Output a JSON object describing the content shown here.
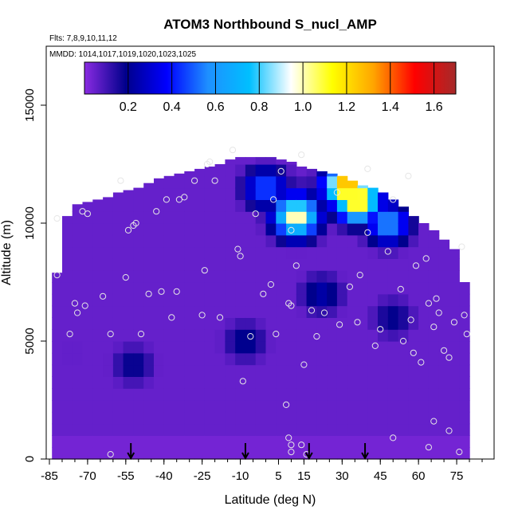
{
  "chart_data": {
    "type": "heatmap",
    "title": "ATOM3 Northbound S_nucl_AMP",
    "flights_note": "Flts: 7,8,9,10,11,12",
    "dates_note": "MMDD: 1014,1017,1019,1020,1023,1025",
    "xlabel": "Latitude (deg N)",
    "ylabel": "Altitude (m)",
    "xlim": [
      -85,
      85
    ],
    "ylim": [
      0,
      17500
    ],
    "x_ticks": [
      -85,
      -70,
      -55,
      -40,
      -25,
      -10,
      5,
      15,
      30,
      45,
      60,
      75
    ],
    "y_ticks": [
      0,
      5000,
      10000,
      15000
    ],
    "colorbar": {
      "min": 0.0,
      "max": 1.7,
      "ticks": [
        0.2,
        0.4,
        0.6,
        0.8,
        1.0,
        1.2,
        1.4,
        1.6
      ],
      "tick_labels": [
        "0.2",
        "0.4",
        "0.6",
        "0.8",
        "1.0",
        "1.2",
        "1.4",
        "1.6"
      ],
      "colors": [
        "#8a2be2",
        "#00008b",
        "#0000ff",
        "#1e90ff",
        "#00bfff",
        "#ffffff",
        "#ffff00",
        "#ffa500",
        "#ff0000",
        "#a52a2a"
      ]
    },
    "coverage": {
      "latitudes": [
        -82,
        -78,
        -74,
        -70,
        -66,
        -62,
        -58,
        -54,
        -50,
        -46,
        -42,
        -38,
        -34,
        -30,
        -26,
        -22,
        -18,
        -14,
        -10,
        -6,
        -2,
        2,
        6,
        10,
        14,
        18,
        22,
        26,
        30,
        34,
        38,
        42,
        46,
        50,
        54,
        58,
        62,
        66,
        70,
        74,
        78
      ],
      "max_altitude_m": [
        7900,
        10300,
        10800,
        10900,
        11000,
        11100,
        11300,
        11400,
        11500,
        11700,
        11900,
        12000,
        12100,
        12200,
        12300,
        12400,
        12500,
        12700,
        12800,
        12800,
        12800,
        12800,
        12700,
        12600,
        12400,
        12300,
        12200,
        12100,
        12000,
        11800,
        11600,
        11500,
        11300,
        11000,
        10700,
        10300,
        10000,
        9700,
        9300,
        8900,
        7500
      ]
    },
    "value_features": [
      {
        "lat": -76,
        "alt": 4500,
        "value": 0.06
      },
      {
        "lat": -52,
        "alt": 4000,
        "value": 0.2
      },
      {
        "lat": -8,
        "alt": 5000,
        "value": 0.22
      },
      {
        "lat": 22,
        "alt": 7000,
        "value": 0.25
      },
      {
        "lat": 0,
        "alt": 11500,
        "value": 0.5
      },
      {
        "lat": 12,
        "alt": 10500,
        "value": 0.75
      },
      {
        "lat": 32,
        "alt": 11600,
        "value": 1.35
      },
      {
        "lat": 36,
        "alt": 11000,
        "value": 1.25
      },
      {
        "lat": 12,
        "alt": 10300,
        "value": 1.05
      },
      {
        "lat": 48,
        "alt": 10000,
        "value": 0.6
      },
      {
        "lat": 50,
        "alt": 6000,
        "value": 0.2
      }
    ],
    "background_value": 0.05,
    "surface_value": 0.03,
    "sample_points": [
      {
        "lat": -82,
        "alt": 7800
      },
      {
        "lat": -82,
        "alt": 10200
      },
      {
        "lat": -77,
        "alt": 5300
      },
      {
        "lat": -75,
        "alt": 6600
      },
      {
        "lat": -74,
        "alt": 6200
      },
      {
        "lat": -72,
        "alt": 10500
      },
      {
        "lat": -71,
        "alt": 6500
      },
      {
        "lat": -70,
        "alt": 10400
      },
      {
        "lat": -64,
        "alt": 6900
      },
      {
        "lat": -61,
        "alt": 5300
      },
      {
        "lat": -61,
        "alt": 200
      },
      {
        "lat": -57,
        "alt": 11800
      },
      {
        "lat": -55,
        "alt": 7700
      },
      {
        "lat": -54,
        "alt": 9700
      },
      {
        "lat": -52,
        "alt": 9900
      },
      {
        "lat": -51,
        "alt": 10000
      },
      {
        "lat": -49,
        "alt": 5300
      },
      {
        "lat": -46,
        "alt": 7000
      },
      {
        "lat": -43,
        "alt": 10500
      },
      {
        "lat": -41,
        "alt": 7100
      },
      {
        "lat": -39,
        "alt": 11000
      },
      {
        "lat": -37,
        "alt": 6000
      },
      {
        "lat": -35,
        "alt": 7100
      },
      {
        "lat": -34,
        "alt": 11000
      },
      {
        "lat": -32,
        "alt": 11100
      },
      {
        "lat": -28,
        "alt": 11800
      },
      {
        "lat": -23,
        "alt": 12500
      },
      {
        "lat": -22,
        "alt": 12600
      },
      {
        "lat": -20,
        "alt": 11800
      },
      {
        "lat": -25,
        "alt": 6100
      },
      {
        "lat": -24,
        "alt": 8000
      },
      {
        "lat": -18,
        "alt": 6000
      },
      {
        "lat": -13,
        "alt": 13100
      },
      {
        "lat": -11,
        "alt": 8900
      },
      {
        "lat": -10,
        "alt": 8600
      },
      {
        "lat": -9,
        "alt": 3300
      },
      {
        "lat": -6,
        "alt": 5200
      },
      {
        "lat": -4,
        "alt": 10400
      },
      {
        "lat": -1,
        "alt": 7000
      },
      {
        "lat": 2,
        "alt": 7400
      },
      {
        "lat": 4,
        "alt": 5300
      },
      {
        "lat": 3,
        "alt": 11000
      },
      {
        "lat": 6,
        "alt": 12200
      },
      {
        "lat": 10,
        "alt": 9700
      },
      {
        "lat": 10,
        "alt": 6500
      },
      {
        "lat": 9,
        "alt": 6600
      },
      {
        "lat": 12,
        "alt": 8200
      },
      {
        "lat": 14,
        "alt": 12900
      },
      {
        "lat": 15,
        "alt": 4000
      },
      {
        "lat": 18,
        "alt": 6300
      },
      {
        "lat": 20,
        "alt": 5200
      },
      {
        "lat": 23,
        "alt": 6200
      },
      {
        "lat": 28,
        "alt": 11300
      },
      {
        "lat": 29,
        "alt": 5700
      },
      {
        "lat": 33,
        "alt": 7300
      },
      {
        "lat": 36,
        "alt": 5800
      },
      {
        "lat": 37,
        "alt": 7800
      },
      {
        "lat": 40,
        "alt": 12300
      },
      {
        "lat": 40,
        "alt": 9600
      },
      {
        "lat": 43,
        "alt": 4800
      },
      {
        "lat": 45,
        "alt": 5500
      },
      {
        "lat": 48,
        "alt": 8800
      },
      {
        "lat": 50,
        "alt": 11000
      },
      {
        "lat": 53,
        "alt": 7200
      },
      {
        "lat": 54,
        "alt": 5000
      },
      {
        "lat": 56,
        "alt": 12000
      },
      {
        "lat": 57,
        "alt": 5900
      },
      {
        "lat": 58,
        "alt": 4500
      },
      {
        "lat": 59,
        "alt": 8200
      },
      {
        "lat": 61,
        "alt": 4100
      },
      {
        "lat": 63,
        "alt": 8500
      },
      {
        "lat": 64,
        "alt": 6600
      },
      {
        "lat": 66,
        "alt": 5600
      },
      {
        "lat": 66,
        "alt": 1600
      },
      {
        "lat": 67,
        "alt": 6800
      },
      {
        "lat": 68,
        "alt": 6200
      },
      {
        "lat": 70,
        "alt": 4600
      },
      {
        "lat": 72,
        "alt": 4300
      },
      {
        "lat": 74,
        "alt": 5800
      },
      {
        "lat": 77,
        "alt": 9000
      },
      {
        "lat": 78,
        "alt": 6100
      },
      {
        "lat": 79,
        "alt": 5300
      },
      {
        "lat": 8,
        "alt": 2300
      },
      {
        "lat": 9,
        "alt": 900
      },
      {
        "lat": 10,
        "alt": 600
      },
      {
        "lat": 10,
        "alt": 300
      },
      {
        "lat": 14,
        "alt": 600
      },
      {
        "lat": 16,
        "alt": 200
      },
      {
        "lat": 50,
        "alt": 900
      },
      {
        "lat": 64,
        "alt": 500
      },
      {
        "lat": 72,
        "alt": 1200
      },
      {
        "lat": 76,
        "alt": 300
      }
    ],
    "profile_markers_lat": [
      -53,
      -8,
      17,
      39
    ]
  }
}
